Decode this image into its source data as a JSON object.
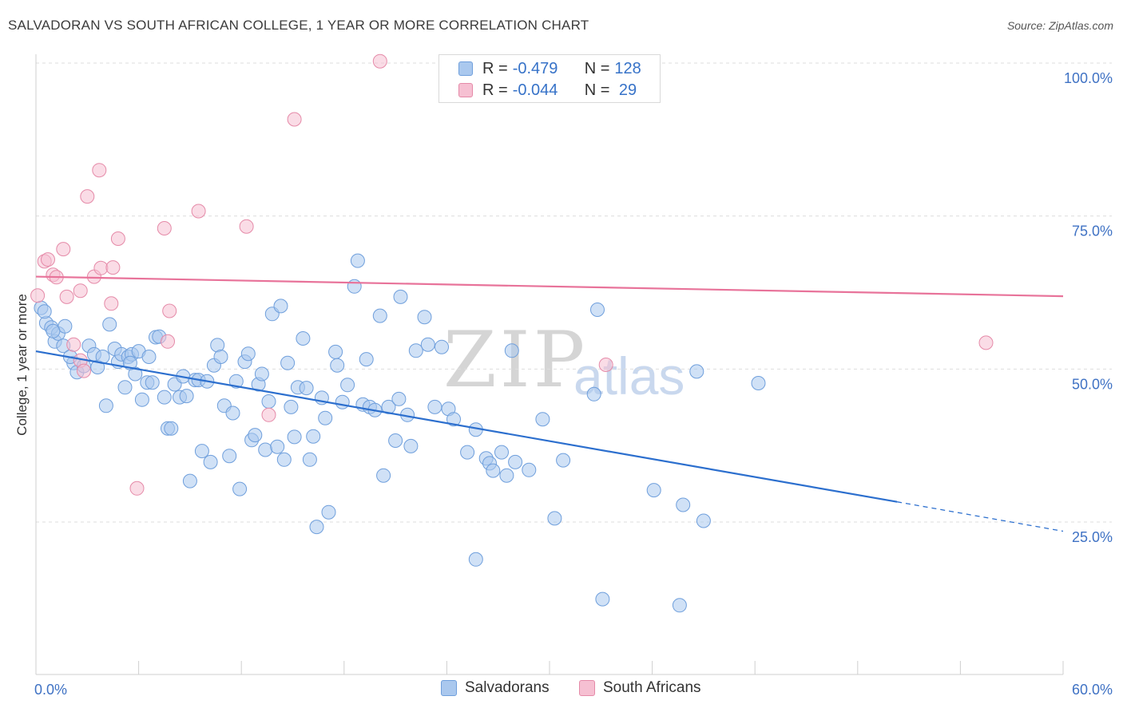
{
  "title": "SALVADORAN VS SOUTH AFRICAN COLLEGE, 1 YEAR OR MORE CORRELATION CHART",
  "source": "Source: ZipAtlas.com",
  "watermark": {
    "zip": "ZIP",
    "atlas": "atlas"
  },
  "legend": {
    "rows": [
      {
        "r_label": "R = ",
        "r_value": "-0.479",
        "n_label": "N = ",
        "n_value": "128"
      },
      {
        "r_label": "R = ",
        "r_value": "-0.044",
        "n_label": "N = ",
        "n_value": " 29"
      }
    ]
  },
  "bottom_legend": [
    "Salvadorans",
    "South Africans"
  ],
  "colors": {
    "blue_fill": "#aac8ee",
    "blue_stroke": "#6f9fdc",
    "blue_line": "#2c6fce",
    "pink_fill": "#f6c0d2",
    "pink_stroke": "#e58aa8",
    "pink_line": "#e8739a",
    "axis_label": "#3f72c4",
    "grid": "#dddddd"
  },
  "chart_data": {
    "type": "scatter",
    "title": "SALVADORAN VS SOUTH AFRICAN COLLEGE, 1 YEAR OR MORE CORRELATION CHART",
    "xlabel": "",
    "ylabel": "College, 1 year or more",
    "xlim": [
      0,
      60
    ],
    "ylim": [
      0,
      102
    ],
    "x_tick_labels": [
      "0.0%",
      "60.0%"
    ],
    "y_ticks": [
      25,
      50,
      75,
      100
    ],
    "y_tick_labels": [
      "25.0%",
      "50.0%",
      "75.0%",
      "100.0%"
    ],
    "grid": true,
    "legend_position": "top-center",
    "series": [
      {
        "name": "Salvadorans",
        "r": -0.479,
        "n": 128,
        "trend": {
          "x0": 0,
          "y0": 52.9,
          "x1": 50.3,
          "y1": 28.3,
          "dash_to_x": 60,
          "dash_to_y": 23.5
        },
        "points": [
          [
            0.3,
            60.0
          ],
          [
            0.6,
            57.5
          ],
          [
            0.9,
            56.8
          ],
          [
            1.1,
            54.5
          ],
          [
            1.3,
            55.8
          ],
          [
            1.7,
            57.0
          ],
          [
            1.6,
            53.8
          ],
          [
            2.2,
            51.0
          ],
          [
            2.4,
            49.5
          ],
          [
            2.8,
            50.5
          ],
          [
            3.1,
            53.8
          ],
          [
            3.4,
            52.4
          ],
          [
            3.6,
            50.3
          ],
          [
            3.9,
            52.0
          ],
          [
            4.1,
            44.0
          ],
          [
            4.3,
            57.3
          ],
          [
            4.6,
            53.3
          ],
          [
            4.8,
            51.2
          ],
          [
            5.0,
            52.4
          ],
          [
            5.2,
            47.0
          ],
          [
            5.4,
            52.0
          ],
          [
            5.6,
            52.4
          ],
          [
            5.8,
            49.2
          ],
          [
            6.0,
            52.9
          ],
          [
            6.2,
            45.0
          ],
          [
            6.5,
            47.8
          ],
          [
            6.8,
            47.8
          ],
          [
            7.0,
            55.2
          ],
          [
            7.2,
            55.3
          ],
          [
            7.5,
            45.4
          ],
          [
            7.7,
            40.3
          ],
          [
            7.9,
            40.3
          ],
          [
            8.1,
            47.5
          ],
          [
            8.4,
            45.4
          ],
          [
            8.6,
            48.8
          ],
          [
            8.8,
            45.6
          ],
          [
            9.0,
            31.7
          ],
          [
            9.3,
            48.2
          ],
          [
            9.5,
            48.2
          ],
          [
            9.7,
            36.6
          ],
          [
            10.0,
            48.0
          ],
          [
            10.2,
            34.8
          ],
          [
            10.4,
            50.6
          ],
          [
            10.6,
            53.9
          ],
          [
            10.8,
            52.0
          ],
          [
            11.0,
            44.0
          ],
          [
            11.3,
            35.8
          ],
          [
            11.5,
            42.8
          ],
          [
            11.7,
            48.0
          ],
          [
            11.9,
            30.4
          ],
          [
            12.2,
            51.2
          ],
          [
            12.4,
            52.5
          ],
          [
            12.6,
            38.4
          ],
          [
            12.8,
            39.2
          ],
          [
            13.0,
            47.5
          ],
          [
            13.2,
            49.2
          ],
          [
            13.4,
            36.8
          ],
          [
            13.6,
            44.7
          ],
          [
            13.8,
            59.0
          ],
          [
            14.1,
            37.3
          ],
          [
            14.3,
            60.3
          ],
          [
            14.5,
            35.2
          ],
          [
            14.7,
            51.0
          ],
          [
            14.9,
            43.8
          ],
          [
            15.1,
            38.9
          ],
          [
            15.3,
            47.0
          ],
          [
            15.6,
            55.0
          ],
          [
            15.8,
            46.9
          ],
          [
            16.0,
            35.2
          ],
          [
            16.2,
            39.0
          ],
          [
            16.4,
            24.2
          ],
          [
            16.7,
            45.3
          ],
          [
            16.9,
            42.0
          ],
          [
            17.1,
            26.6
          ],
          [
            17.5,
            52.8
          ],
          [
            17.9,
            44.6
          ],
          [
            18.2,
            47.4
          ],
          [
            18.6,
            63.5
          ],
          [
            18.8,
            67.7
          ],
          [
            19.1,
            44.2
          ],
          [
            19.3,
            51.6
          ],
          [
            19.5,
            43.8
          ],
          [
            19.8,
            43.3
          ],
          [
            20.1,
            58.7
          ],
          [
            20.3,
            32.6
          ],
          [
            20.6,
            43.8
          ],
          [
            21.0,
            38.3
          ],
          [
            21.2,
            45.1
          ],
          [
            21.3,
            61.8
          ],
          [
            21.7,
            42.5
          ],
          [
            21.9,
            37.4
          ],
          [
            22.2,
            53.0
          ],
          [
            22.7,
            58.5
          ],
          [
            22.9,
            54.0
          ],
          [
            23.3,
            43.8
          ],
          [
            23.7,
            53.6
          ],
          [
            24.1,
            43.5
          ],
          [
            24.4,
            41.8
          ],
          [
            25.2,
            36.4
          ],
          [
            25.7,
            40.1
          ],
          [
            26.3,
            35.4
          ],
          [
            26.5,
            34.6
          ],
          [
            26.7,
            33.4
          ],
          [
            27.2,
            36.4
          ],
          [
            27.5,
            32.6
          ],
          [
            27.8,
            53.0
          ],
          [
            28.0,
            34.8
          ],
          [
            28.8,
            33.5
          ],
          [
            29.6,
            41.8
          ],
          [
            30.3,
            25.6
          ],
          [
            30.8,
            35.1
          ],
          [
            25.7,
            18.9
          ],
          [
            32.6,
            45.9
          ],
          [
            32.8,
            59.7
          ],
          [
            33.1,
            12.4
          ],
          [
            36.1,
            30.2
          ],
          [
            37.8,
            27.8
          ],
          [
            37.6,
            11.4
          ],
          [
            38.6,
            49.6
          ],
          [
            39.0,
            25.2
          ],
          [
            42.2,
            47.7
          ],
          [
            0.5,
            59.4
          ],
          [
            1.0,
            56.2
          ],
          [
            2.0,
            52.0
          ],
          [
            6.6,
            52.0
          ],
          [
            5.5,
            51.0
          ],
          [
            17.6,
            50.6
          ]
        ]
      },
      {
        "name": "South Africans",
        "r": -0.044,
        "n": 29,
        "trend": {
          "x0": 0,
          "y0": 65.1,
          "x1": 60,
          "y1": 61.9
        },
        "points": [
          [
            0.1,
            62.0
          ],
          [
            0.5,
            67.6
          ],
          [
            0.7,
            67.9
          ],
          [
            1.0,
            65.4
          ],
          [
            1.2,
            65.0
          ],
          [
            1.6,
            69.6
          ],
          [
            1.8,
            61.8
          ],
          [
            2.2,
            54.0
          ],
          [
            2.6,
            51.4
          ],
          [
            2.6,
            62.8
          ],
          [
            2.8,
            49.7
          ],
          [
            3.0,
            78.2
          ],
          [
            3.4,
            65.1
          ],
          [
            3.7,
            82.5
          ],
          [
            3.8,
            66.5
          ],
          [
            4.4,
            60.7
          ],
          [
            4.5,
            66.6
          ],
          [
            4.8,
            71.3
          ],
          [
            5.9,
            30.5
          ],
          [
            7.5,
            73.0
          ],
          [
            7.7,
            54.5
          ],
          [
            7.8,
            59.5
          ],
          [
            9.5,
            75.8
          ],
          [
            12.3,
            73.3
          ],
          [
            13.6,
            42.5
          ],
          [
            15.1,
            90.8
          ],
          [
            20.1,
            100.3
          ],
          [
            33.3,
            50.7
          ],
          [
            55.5,
            54.3
          ]
        ]
      }
    ]
  }
}
